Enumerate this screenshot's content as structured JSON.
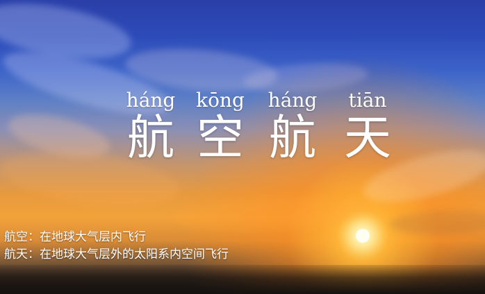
{
  "title": {
    "pinyin": [
      "háng",
      "kōng",
      "háng",
      "tiān"
    ],
    "characters": [
      "航",
      "空",
      "航",
      "天"
    ]
  },
  "definitions": [
    "航空：在地球大气层内飞行",
    "航天：在地球大气层外的太阳系内空间飞行"
  ],
  "colors": {
    "sky_top": "#2a3fa8",
    "sky_horizon": "#f2a23a",
    "sun": "#fffef2",
    "text": "#ffffff"
  }
}
